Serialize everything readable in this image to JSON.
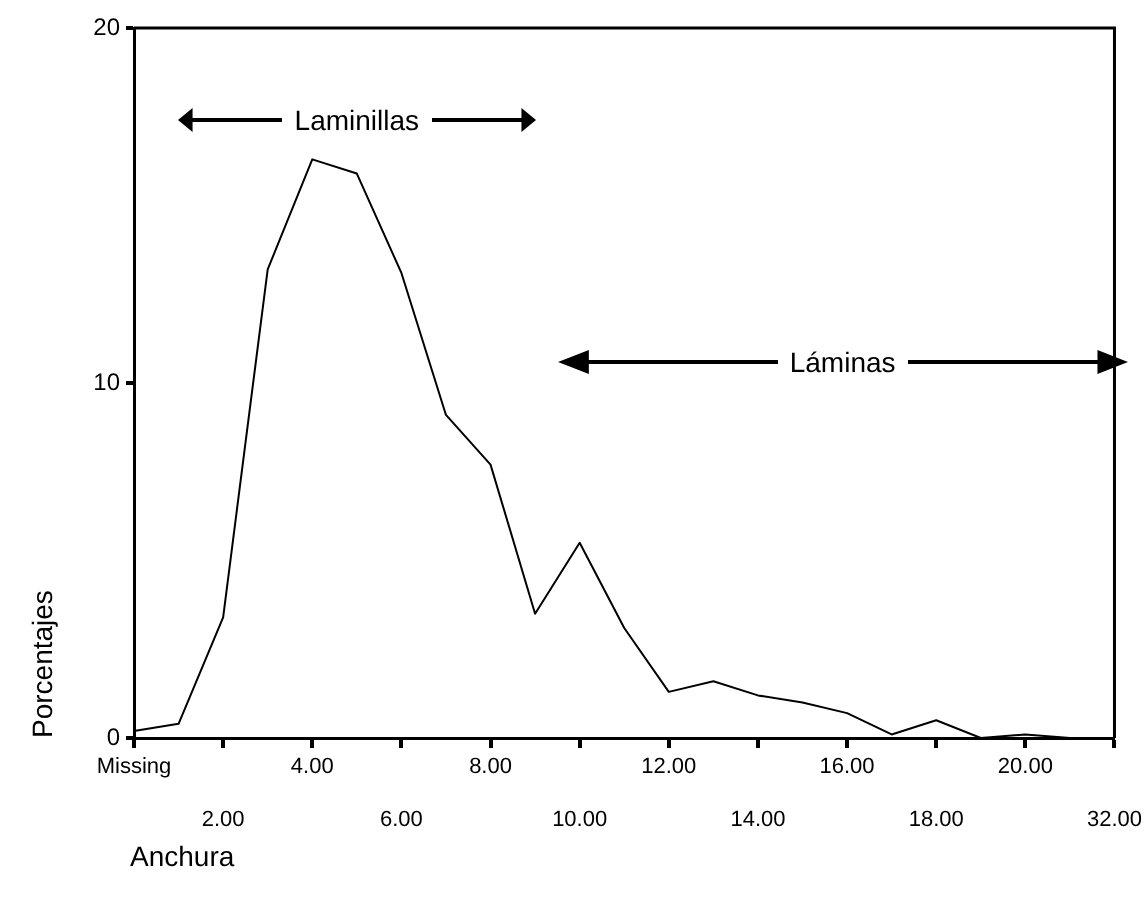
{
  "chart_data": {
    "type": "line",
    "xlabel": "Anchura",
    "ylabel": "Porcentajes",
    "categories": [
      "Missing",
      null,
      "2.00",
      null,
      "4.00",
      null,
      "6.00",
      null,
      "8.00",
      null,
      "10.00",
      null,
      "12.00",
      null,
      "14.00",
      null,
      "16.00",
      null,
      "18.00",
      null,
      "20.00",
      null,
      "32.00"
    ],
    "series": [
      {
        "color": "#000000",
        "values": [
          0.2,
          0.4,
          3.4,
          13.2,
          16.3,
          15.9,
          13.1,
          9.1,
          7.7,
          3.5,
          5.5,
          3.1,
          1.3,
          1.6,
          1.2,
          1.0,
          0.7,
          0.1,
          0.5,
          0.0,
          0.1,
          0.0,
          0.0
        ]
      }
    ],
    "ylim": [
      0,
      20
    ],
    "yticks": [
      0,
      10,
      20
    ],
    "grid": false,
    "legend": false,
    "marker": "none",
    "line_style": "solid",
    "annotations": [
      "Laminillas",
      "Láminas"
    ]
  }
}
